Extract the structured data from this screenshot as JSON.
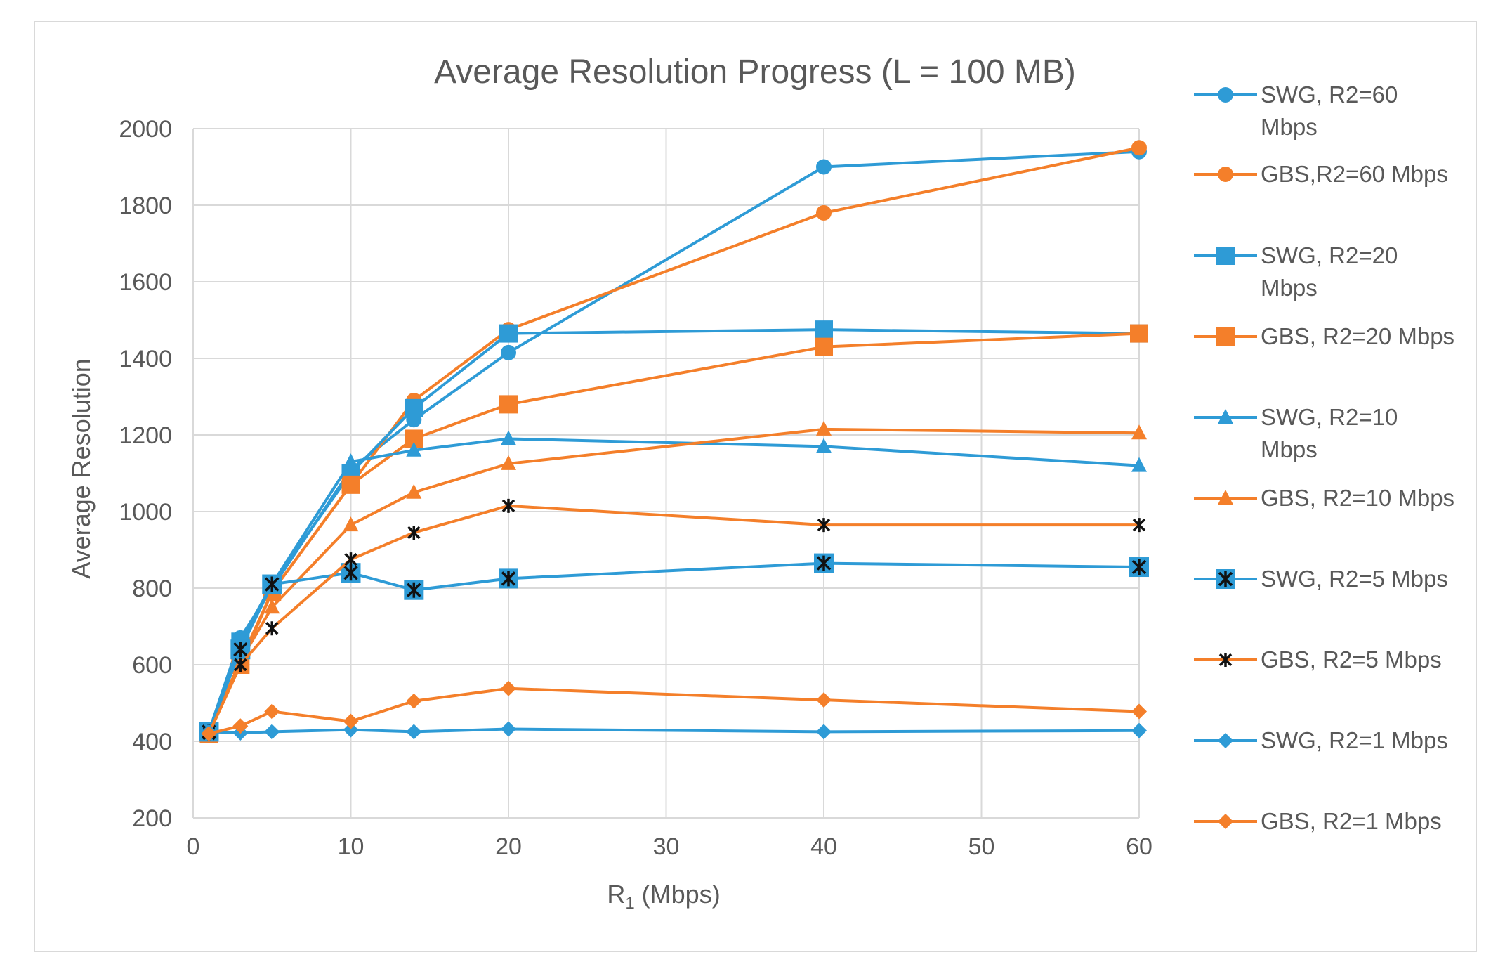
{
  "chart_data": {
    "type": "line",
    "title": "Average Resolution Progress (L = 100 MB)",
    "xlabel_main": "R",
    "xlabel_sub": "1",
    "xlabel_rest": " (Mbps)",
    "ylabel": "Average Resolution",
    "xlim": [
      0,
      60
    ],
    "ylim": [
      200,
      2000
    ],
    "xticks": [
      0,
      10,
      20,
      30,
      40,
      50,
      60
    ],
    "yticks": [
      200,
      400,
      600,
      800,
      1000,
      1200,
      1400,
      1600,
      1800,
      2000
    ],
    "grid": true,
    "legend_position": "right",
    "x": [
      1,
      3,
      5,
      10,
      14,
      20,
      40,
      60
    ],
    "series": [
      {
        "name_lines": [
          "SWG, R2=60",
          "Mbps"
        ],
        "color": "#2e9bd6",
        "marker": "circle",
        "values": [
          425,
          670,
          800,
          1110,
          1240,
          1415,
          1900,
          1940
        ]
      },
      {
        "name_lines": [
          "GBS,R2=60 Mbps"
        ],
        "color": "#f47f2a",
        "marker": "circle",
        "values": [
          425,
          610,
          790,
          1070,
          1290,
          1475,
          1780,
          1950
        ]
      },
      {
        "name_lines": [
          "SWG, R2=20",
          "Mbps"
        ],
        "color": "#2e9bd6",
        "marker": "square",
        "values": [
          425,
          660,
          810,
          1100,
          1270,
          1465,
          1475,
          1465
        ]
      },
      {
        "name_lines": [
          "GBS, R2=20 Mbps"
        ],
        "color": "#f47f2a",
        "marker": "square",
        "values": [
          420,
          600,
          790,
          1070,
          1190,
          1280,
          1430,
          1465
        ]
      },
      {
        "name_lines": [
          "SWG, R2=10",
          "Mbps"
        ],
        "color": "#2e9bd6",
        "marker": "triangle",
        "values": [
          425,
          660,
          810,
          1130,
          1160,
          1190,
          1170,
          1120
        ]
      },
      {
        "name_lines": [
          "GBS, R2=10 Mbps"
        ],
        "color": "#f47f2a",
        "marker": "triangle",
        "values": [
          420,
          610,
          750,
          965,
          1050,
          1125,
          1215,
          1205
        ]
      },
      {
        "name_lines": [
          "SWG, R2=5 Mbps"
        ],
        "color": "#2e9bd6",
        "marker": "starsquare",
        "values": [
          425,
          640,
          810,
          840,
          795,
          825,
          865,
          855
        ]
      },
      {
        "name_lines": [
          "GBS, R2=5 Mbps"
        ],
        "color": "#f47f2a",
        "marker": "star",
        "values": [
          420,
          600,
          695,
          875,
          945,
          1015,
          965,
          965
        ]
      },
      {
        "name_lines": [
          "SWG, R2=1 Mbps"
        ],
        "color": "#2e9bd6",
        "marker": "diamond",
        "values": [
          425,
          422,
          425,
          430,
          425,
          432,
          425,
          428
        ]
      },
      {
        "name_lines": [
          "GBS, R2=1 Mbps"
        ],
        "color": "#f47f2a",
        "marker": "diamond",
        "values": [
          420,
          440,
          478,
          452,
          505,
          538,
          508,
          478
        ]
      }
    ]
  }
}
